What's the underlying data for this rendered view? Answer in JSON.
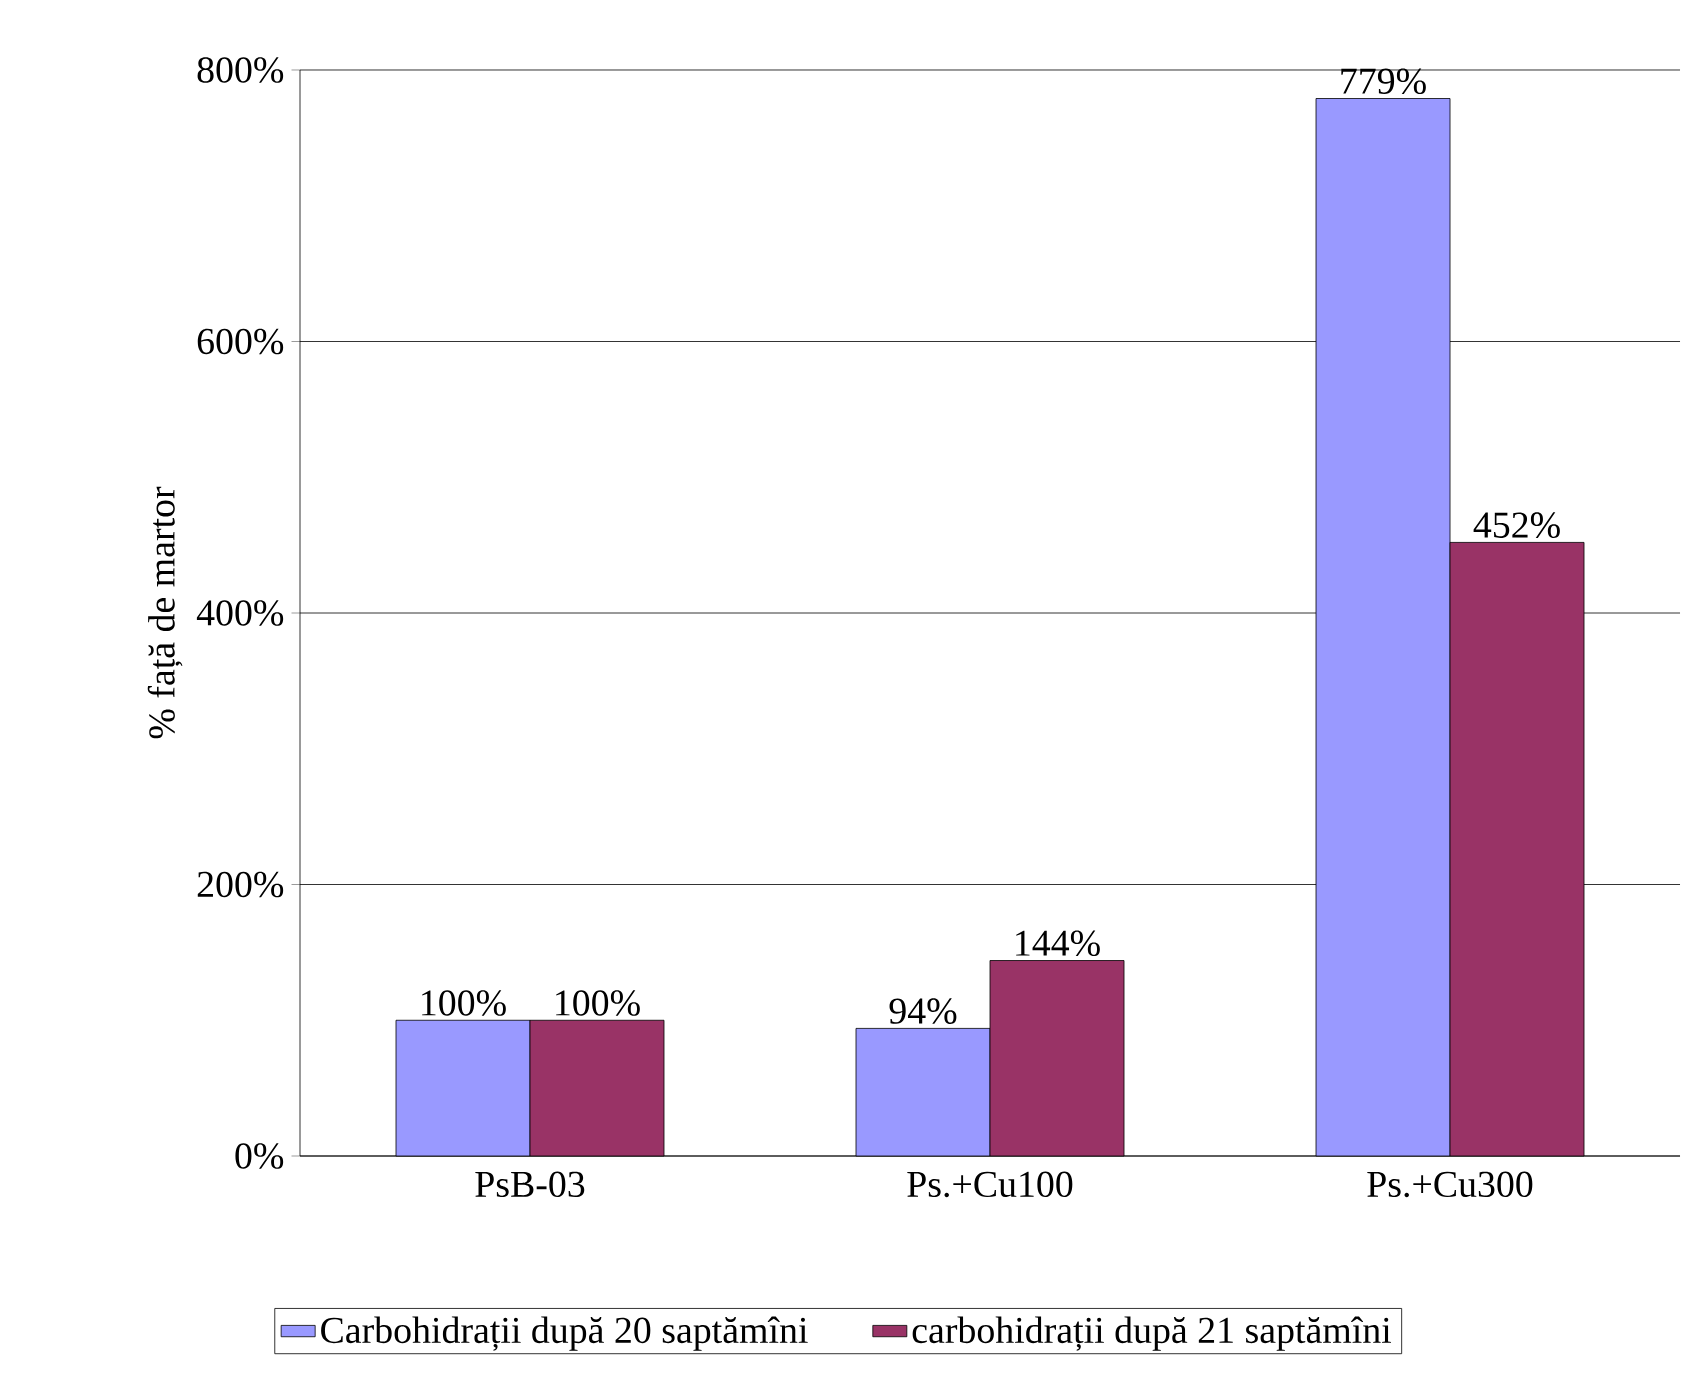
{
  "chart_data": {
    "type": "bar",
    "ylabel": "% față de martor",
    "categories": [
      "PsB-03",
      "Ps.+Cu100",
      "Ps.+Cu300"
    ],
    "series": [
      {
        "name": "Carbohidrații după 20 saptămîni",
        "color": "#9999ff",
        "values": [
          100,
          94,
          779
        ],
        "value_labels": [
          "100%",
          "94%",
          "779%"
        ]
      },
      {
        "name": "carbohidrații după 21 saptămîni",
        "color": "#993366",
        "values": [
          100,
          144,
          452
        ],
        "value_labels": [
          "100%",
          "144%",
          "452%"
        ]
      }
    ],
    "ylim": [
      0,
      800
    ],
    "yticks": [
      {
        "value": 0,
        "label": "0%"
      },
      {
        "value": 200,
        "label": "200%"
      },
      {
        "value": 400,
        "label": "400%"
      },
      {
        "value": 600,
        "label": "600%"
      },
      {
        "value": 800,
        "label": "800%"
      }
    ],
    "grid": "y",
    "legend": "bottom"
  }
}
